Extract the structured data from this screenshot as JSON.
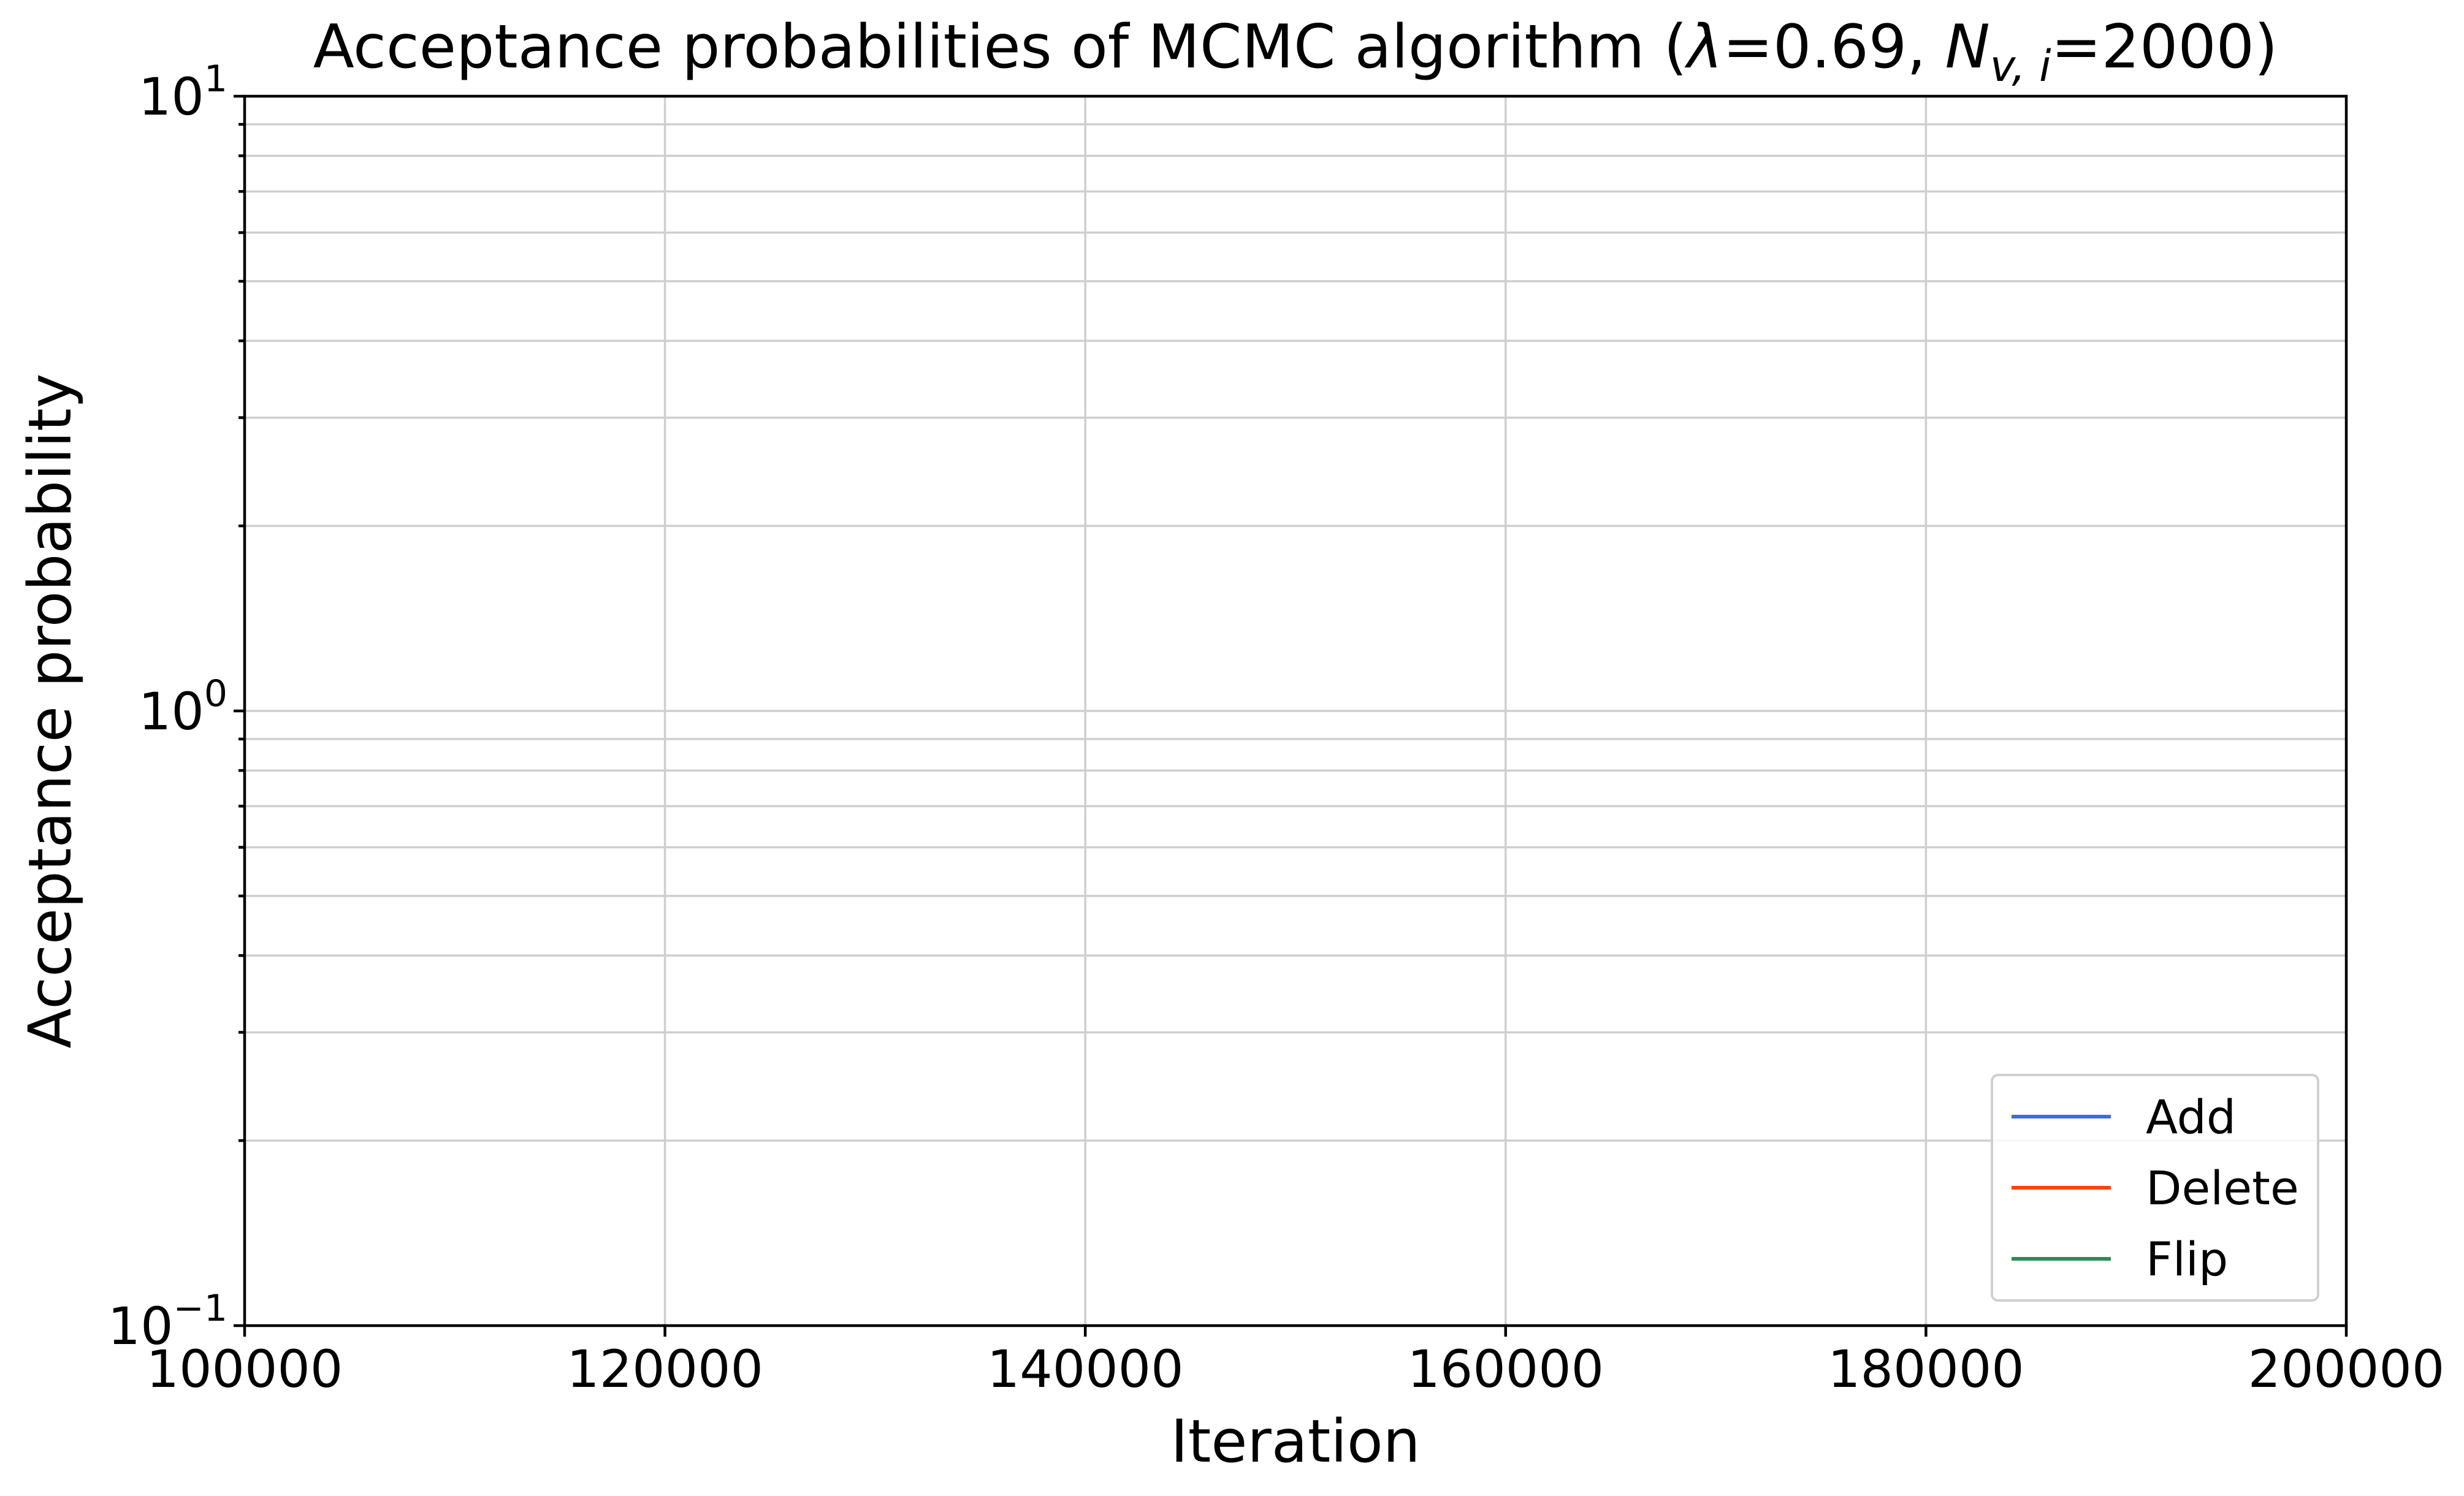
{
  "chart_data": {
    "type": "line",
    "title": {
      "prefix": "Acceptance probabilities of MCMC algorithm (",
      "lambda_symbol": "λ",
      "lambda_value": "=0.69, ",
      "n_symbol": "N",
      "n_subscript": "v, i",
      "n_value": "=2000)"
    },
    "xlabel": "Iteration",
    "ylabel": "Acceptance probability",
    "xlim": [
      100000,
      200000
    ],
    "ylim": [
      0.1,
      10
    ],
    "yscale": "log",
    "grid": true,
    "legend_position": "lower-right",
    "x_ticks": [
      {
        "value": 100000,
        "label": "100000"
      },
      {
        "value": 120000,
        "label": "120000"
      },
      {
        "value": 140000,
        "label": "140000"
      },
      {
        "value": 160000,
        "label": "160000"
      },
      {
        "value": 180000,
        "label": "180000"
      },
      {
        "value": 200000,
        "label": "200000"
      }
    ],
    "y_ticks": [
      {
        "value": 0.1,
        "base": "10",
        "exp": "−1"
      },
      {
        "value": 1,
        "base": "10",
        "exp": "0"
      },
      {
        "value": 10,
        "base": "10",
        "exp": "1"
      }
    ],
    "series": [
      {
        "name": "Add",
        "color": "#4169e1",
        "x": [],
        "y": []
      },
      {
        "name": "Delete",
        "color": "#ff4500",
        "x": [],
        "y": []
      },
      {
        "name": "Flip",
        "color": "#2e8b57",
        "x": [],
        "y": []
      }
    ]
  }
}
